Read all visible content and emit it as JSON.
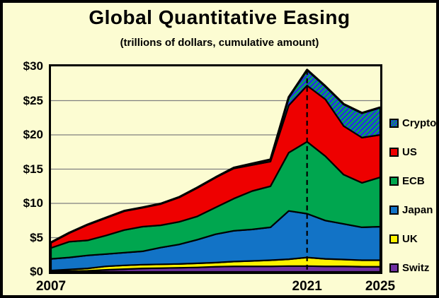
{
  "title": "Global Quantitative Easing",
  "subtitle": "(trillions of dollars, cumulative amount)",
  "colors": {
    "background": "#FCFCD2",
    "border": "#000000",
    "gridline": "#7F7F7F",
    "us_red": "#EE0000",
    "ecb_green": "#00A64F",
    "japan_blue": "#1273C6",
    "uk_yellow": "#FFF200",
    "switz_purple": "#7030A0",
    "crypto_hatch_base": "#2336DC",
    "crypto_hatch_stripe": "#00B24A"
  },
  "chart_data": {
    "type": "area",
    "stacked": true,
    "title": "Global Quantitative Easing",
    "subtitle": "(trillions of dollars, cumulative amount)",
    "xlabel": "",
    "ylabel": "",
    "x": [
      2007,
      2008,
      2009,
      2010,
      2011,
      2012,
      2013,
      2014,
      2015,
      2016,
      2017,
      2018,
      2019,
      2020,
      2021,
      2022,
      2023,
      2024,
      2025
    ],
    "xlim": [
      2007,
      2025
    ],
    "ylim": [
      0,
      30
    ],
    "ytick_step": 5,
    "ytick_prefix": "$",
    "xticks": [
      2007,
      2021,
      2025
    ],
    "grid": true,
    "legend_position": "right-outside",
    "annotations": [
      {
        "type": "vline",
        "x": 2021,
        "style": "dashed",
        "color": "#000000"
      }
    ],
    "hatch": {
      "base": "#2336DC",
      "stripe": "#00B24A"
    },
    "series": [
      {
        "name": "Switz",
        "color": "#7030A0",
        "values": [
          0.05,
          0.1,
          0.15,
          0.3,
          0.4,
          0.5,
          0.55,
          0.6,
          0.65,
          0.75,
          0.8,
          0.8,
          0.8,
          0.85,
          0.85,
          0.8,
          0.8,
          0.75,
          0.75
        ]
      },
      {
        "name": "UK",
        "color": "#FFF200",
        "values": [
          0.15,
          0.25,
          0.35,
          0.5,
          0.55,
          0.55,
          0.55,
          0.55,
          0.6,
          0.6,
          0.7,
          0.8,
          0.9,
          1.0,
          1.25,
          1.1,
          1.0,
          0.95,
          0.95
        ]
      },
      {
        "name": "Japan",
        "color": "#1273C6",
        "values": [
          1.7,
          1.75,
          1.9,
          1.8,
          1.85,
          1.95,
          2.45,
          2.85,
          3.45,
          4.15,
          4.5,
          4.6,
          4.8,
          7.05,
          6.4,
          5.6,
          5.2,
          4.8,
          4.9
        ]
      },
      {
        "name": "ECB",
        "color": "#00A64F",
        "values": [
          1.6,
          2.3,
          2.2,
          2.7,
          3.3,
          3.6,
          3.25,
          3.3,
          3.4,
          3.9,
          4.7,
          5.6,
          6.0,
          8.5,
          10.5,
          9.4,
          7.2,
          6.5,
          7.2
        ]
      },
      {
        "name": "US",
        "color": "#EE0000",
        "values": [
          0.8,
          1.3,
          2.3,
          2.6,
          2.8,
          2.8,
          3.15,
          3.6,
          4.2,
          4.4,
          4.4,
          3.8,
          3.6,
          6.9,
          8.2,
          8.3,
          7.1,
          6.6,
          6.2
        ]
      },
      {
        "name": "Crypto",
        "color": "hatch",
        "values": [
          0,
          0,
          0,
          0,
          0,
          0,
          0,
          0,
          0,
          0,
          0.1,
          0.2,
          0.3,
          1.2,
          2.3,
          1.9,
          3.2,
          3.6,
          4.0
        ]
      }
    ],
    "legend": [
      {
        "label": "Crypto",
        "color": "hatch"
      },
      {
        "label": "US",
        "color": "#EE0000"
      },
      {
        "label": "ECB",
        "color": "#00A64F"
      },
      {
        "label": "Japan",
        "color": "#1273C6"
      },
      {
        "label": "UK",
        "color": "#FFF200"
      },
      {
        "label": "Switz",
        "color": "#7030A0"
      }
    ]
  }
}
